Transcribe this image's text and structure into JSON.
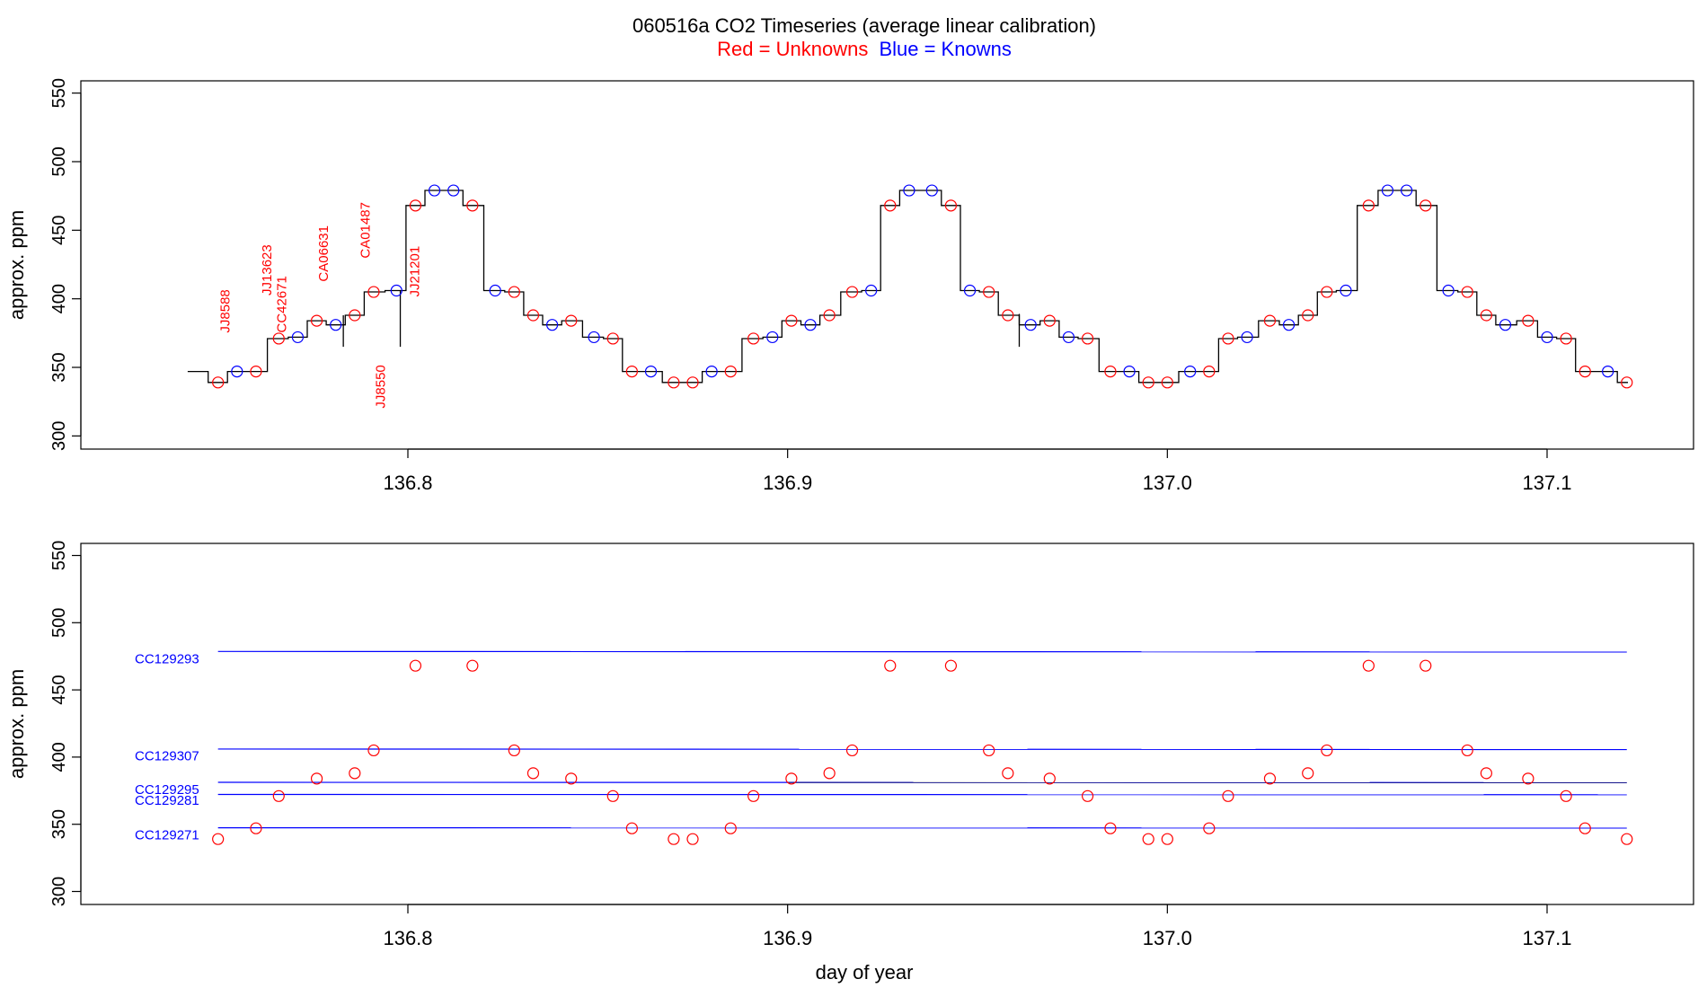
{
  "figure": {
    "title": "060516a   CO2 Timeseries (average linear calibration)",
    "legend": {
      "unknowns": "Red = Unknowns",
      "knowns": "Blue = Knowns"
    },
    "xlabel": "day of year",
    "colors": {
      "unknown": "#ff0000",
      "known": "#0000ff",
      "trace": "#000000",
      "axis": "#000000"
    }
  },
  "chart_data": [
    {
      "type": "line",
      "panel": "top",
      "ylabel": "approx. ppm",
      "xlabel": "",
      "xlim": [
        136.714,
        137.138
      ],
      "ylim": [
        295,
        555
      ],
      "xticks": [
        136.8,
        136.9,
        137.0,
        137.1
      ],
      "xtick_labels": [
        "136.8",
        "136.9",
        "137.0",
        "137.1"
      ],
      "yticks": [
        300,
        350,
        400,
        450,
        500,
        550
      ],
      "ytick_labels": [
        "300",
        "350",
        "400",
        "450",
        "500",
        "550"
      ],
      "trace_start": [
        136.742,
        347
      ],
      "levels": [
        [
          136.75,
          339,
          "u"
        ],
        [
          136.755,
          347,
          "k"
        ],
        [
          136.76,
          347,
          "u"
        ],
        [
          136.766,
          371,
          "u"
        ],
        [
          136.771,
          372,
          "k"
        ],
        [
          136.776,
          384,
          "u"
        ],
        [
          136.781,
          381,
          "k"
        ],
        [
          136.786,
          388,
          "u"
        ],
        [
          136.791,
          405,
          "u"
        ],
        [
          136.797,
          406,
          "k"
        ],
        [
          136.802,
          468,
          "u"
        ],
        [
          136.807,
          479,
          "k"
        ],
        [
          136.812,
          479,
          "k"
        ],
        [
          136.817,
          468,
          "u"
        ],
        [
          136.823,
          406,
          "k"
        ],
        [
          136.828,
          405,
          "u"
        ],
        [
          136.833,
          388,
          "u"
        ],
        [
          136.838,
          381,
          "k"
        ],
        [
          136.843,
          384,
          "u"
        ],
        [
          136.849,
          372,
          "k"
        ],
        [
          136.854,
          371,
          "u"
        ],
        [
          136.859,
          347,
          "u"
        ],
        [
          136.864,
          347,
          "k"
        ],
        [
          136.87,
          339,
          "u"
        ],
        [
          136.875,
          339,
          "u"
        ],
        [
          136.88,
          347,
          "k"
        ],
        [
          136.885,
          347,
          "u"
        ],
        [
          136.891,
          371,
          "u"
        ],
        [
          136.896,
          372,
          "k"
        ],
        [
          136.901,
          384,
          "u"
        ],
        [
          136.906,
          381,
          "k"
        ],
        [
          136.911,
          388,
          "u"
        ],
        [
          136.917,
          405,
          "u"
        ],
        [
          136.922,
          406,
          "k"
        ],
        [
          136.927,
          468,
          "u"
        ],
        [
          136.932,
          479,
          "k"
        ],
        [
          136.938,
          479,
          "k"
        ],
        [
          136.943,
          468,
          "u"
        ],
        [
          136.948,
          406,
          "k"
        ],
        [
          136.953,
          405,
          "u"
        ],
        [
          136.958,
          388,
          "u"
        ],
        [
          136.964,
          381,
          "k"
        ],
        [
          136.969,
          384,
          "u"
        ],
        [
          136.974,
          372,
          "k"
        ],
        [
          136.979,
          371,
          "u"
        ],
        [
          136.985,
          347,
          "u"
        ],
        [
          136.99,
          347,
          "k"
        ],
        [
          136.995,
          339,
          "u"
        ],
        [
          137.0,
          339,
          "u"
        ],
        [
          137.006,
          347,
          "k"
        ],
        [
          137.011,
          347,
          "u"
        ],
        [
          137.016,
          371,
          "u"
        ],
        [
          137.021,
          372,
          "k"
        ],
        [
          137.027,
          384,
          "u"
        ],
        [
          137.032,
          381,
          "k"
        ],
        [
          137.037,
          388,
          "u"
        ],
        [
          137.042,
          405,
          "u"
        ],
        [
          137.047,
          406,
          "k"
        ],
        [
          137.053,
          468,
          "u"
        ],
        [
          137.058,
          479,
          "k"
        ],
        [
          137.063,
          479,
          "k"
        ],
        [
          137.068,
          468,
          "u"
        ],
        [
          137.074,
          406,
          "k"
        ],
        [
          137.079,
          405,
          "u"
        ],
        [
          137.084,
          388,
          "u"
        ],
        [
          137.089,
          381,
          "k"
        ],
        [
          137.095,
          384,
          "u"
        ],
        [
          137.1,
          372,
          "k"
        ],
        [
          137.105,
          371,
          "u"
        ],
        [
          137.11,
          347,
          "u"
        ],
        [
          137.116,
          347,
          "k"
        ],
        [
          137.121,
          339,
          "u"
        ]
      ],
      "spikes": [
        {
          "x": 136.783,
          "y_low": 365,
          "y_high": 388
        },
        {
          "x": 136.798,
          "y_low": 365,
          "y_high": 406
        },
        {
          "x": 136.961,
          "y_low": 365,
          "y_high": 389
        }
      ],
      "annotations": [
        {
          "text": "JJ8588",
          "x": 136.753,
          "y": 391
        },
        {
          "text": "CC42671",
          "x": 136.768,
          "y": 396
        },
        {
          "text": "JJ13623",
          "x": 136.764,
          "y": 421
        },
        {
          "text": "CA06631",
          "x": 136.779,
          "y": 433
        },
        {
          "text": "CA01487",
          "x": 136.79,
          "y": 450
        },
        {
          "text": "JJ8550",
          "x": 136.794,
          "y": 336
        },
        {
          "text": "JJ21201",
          "x": 136.803,
          "y": 420
        }
      ]
    },
    {
      "type": "scatter",
      "panel": "bottom",
      "ylabel": "approx. ppm",
      "xlabel": "day of year",
      "xlim": [
        136.714,
        137.138
      ],
      "ylim": [
        295,
        555
      ],
      "xticks": [
        136.8,
        136.9,
        137.0,
        137.1
      ],
      "xtick_labels": [
        "136.8",
        "136.9",
        "137.0",
        "137.1"
      ],
      "yticks": [
        300,
        350,
        400,
        450,
        500,
        550
      ],
      "ytick_labels": [
        "300",
        "350",
        "400",
        "450",
        "500",
        "550"
      ],
      "reference_lines": [
        {
          "name": "CC129293",
          "x0": 136.75,
          "x1": 137.121,
          "y0": 478.6,
          "y1": 478.2,
          "color": "#0000ff"
        },
        {
          "name": "CC129307",
          "x0": 136.75,
          "x1": 137.121,
          "y0": 406.0,
          "y1": 405.6,
          "color": "#0000ff"
        },
        {
          "name": "CC129295",
          "x0": 136.75,
          "x1": 137.121,
          "y0": 381.2,
          "y1": 381.0,
          "color": "#0000ff"
        },
        {
          "name": "CC129281",
          "x0": 136.75,
          "x1": 137.121,
          "y0": 372.2,
          "y1": 372.0,
          "color": "#0000ff"
        },
        {
          "name": "CC129271",
          "x0": 136.75,
          "x1": 137.121,
          "y0": 347.4,
          "y1": 347.2,
          "color": "#0000ff"
        }
      ],
      "label_y": {
        "CC129293": 473,
        "CC129307": 401,
        "CC129295": 376,
        "CC129281": 368,
        "CC129271": 342
      },
      "points": [
        [
          136.75,
          339
        ],
        [
          136.76,
          347
        ],
        [
          136.766,
          371
        ],
        [
          136.776,
          384
        ],
        [
          136.786,
          388
        ],
        [
          136.791,
          405
        ],
        [
          136.802,
          468
        ],
        [
          136.817,
          468
        ],
        [
          136.828,
          405
        ],
        [
          136.833,
          388
        ],
        [
          136.843,
          384
        ],
        [
          136.854,
          371
        ],
        [
          136.859,
          347
        ],
        [
          136.87,
          339
        ],
        [
          136.875,
          339
        ],
        [
          136.885,
          347
        ],
        [
          136.891,
          371
        ],
        [
          136.901,
          384
        ],
        [
          136.911,
          388
        ],
        [
          136.917,
          405
        ],
        [
          136.927,
          468
        ],
        [
          136.943,
          468
        ],
        [
          136.953,
          405
        ],
        [
          136.958,
          388
        ],
        [
          136.969,
          384
        ],
        [
          136.979,
          371
        ],
        [
          136.985,
          347
        ],
        [
          136.995,
          339
        ],
        [
          137.0,
          339
        ],
        [
          137.011,
          347
        ],
        [
          137.016,
          371
        ],
        [
          137.027,
          384
        ],
        [
          137.037,
          388
        ],
        [
          137.042,
          405
        ],
        [
          137.053,
          468
        ],
        [
          137.068,
          468
        ],
        [
          137.079,
          405
        ],
        [
          137.084,
          388
        ],
        [
          137.095,
          384
        ],
        [
          137.105,
          371
        ],
        [
          137.11,
          347
        ],
        [
          137.121,
          339
        ]
      ]
    }
  ]
}
